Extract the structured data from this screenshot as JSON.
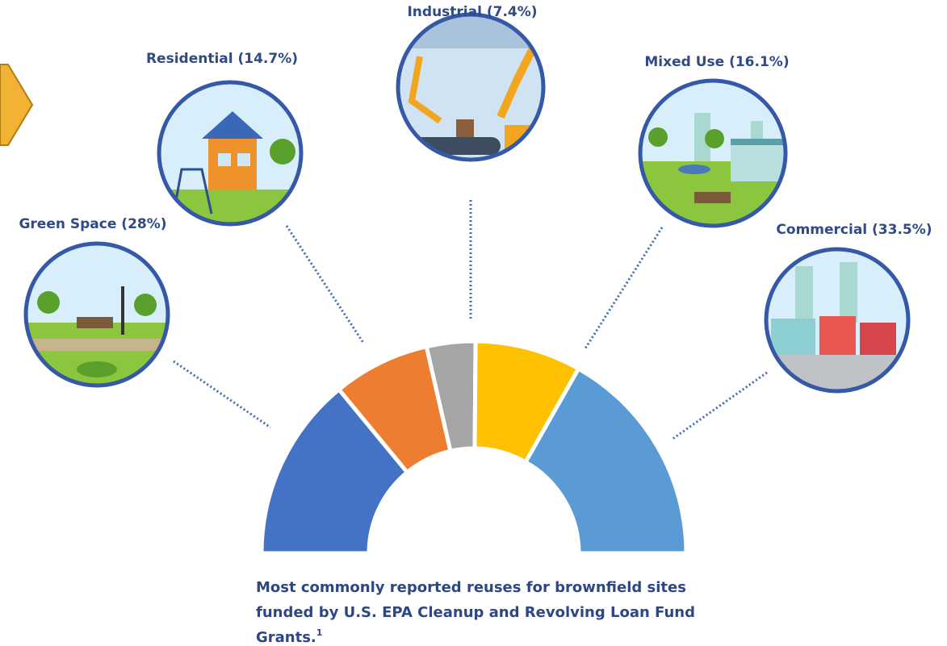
{
  "chart_data": {
    "type": "semi-donut",
    "categories": [
      "Green Space (28%)",
      "Residential (14.7%)",
      "Industrial (7.4%)",
      "Mixed Use (16.1%)",
      "Commercial (33.5%)"
    ],
    "values": [
      28,
      14.7,
      7.4,
      16.1,
      33.5
    ],
    "colors": [
      "#4472c4",
      "#ed7d31",
      "#a5a5a5",
      "#ffc000",
      "#5b9bd5"
    ],
    "caption_lines": [
      "Most commonly reported reuses for brownfield sites",
      "funded by U.S. EPA Cleanup and Revolving Loan Fund",
      "Grants."
    ],
    "footnote_marker": "1"
  }
}
